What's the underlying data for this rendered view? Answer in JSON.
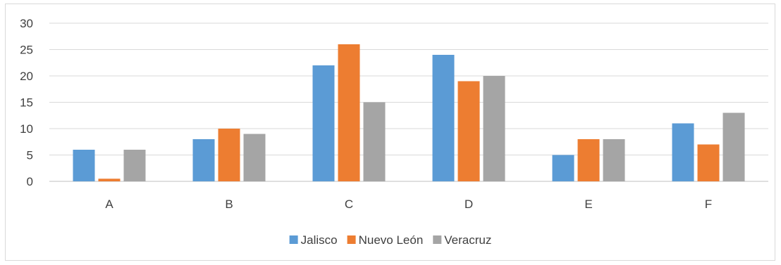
{
  "chart_data": {
    "type": "bar",
    "categories": [
      "A",
      "B",
      "C",
      "D",
      "E",
      "F"
    ],
    "series": [
      {
        "name": "Jalisco",
        "color": "#5b9bd5",
        "values": [
          6,
          8,
          22,
          24,
          5,
          11
        ]
      },
      {
        "name": "Nuevo León",
        "color": "#ed7d31",
        "values": [
          0.5,
          10,
          26,
          19,
          8,
          7
        ]
      },
      {
        "name": "Veracruz",
        "color": "#a5a5a5",
        "values": [
          6,
          9,
          15,
          20,
          8,
          13
        ]
      }
    ],
    "yticks": [
      0,
      5,
      10,
      15,
      20,
      25,
      30
    ],
    "ylim": [
      0,
      30
    ],
    "grid": true,
    "legend": "bottom",
    "title": "",
    "xlabel": "",
    "ylabel": ""
  }
}
